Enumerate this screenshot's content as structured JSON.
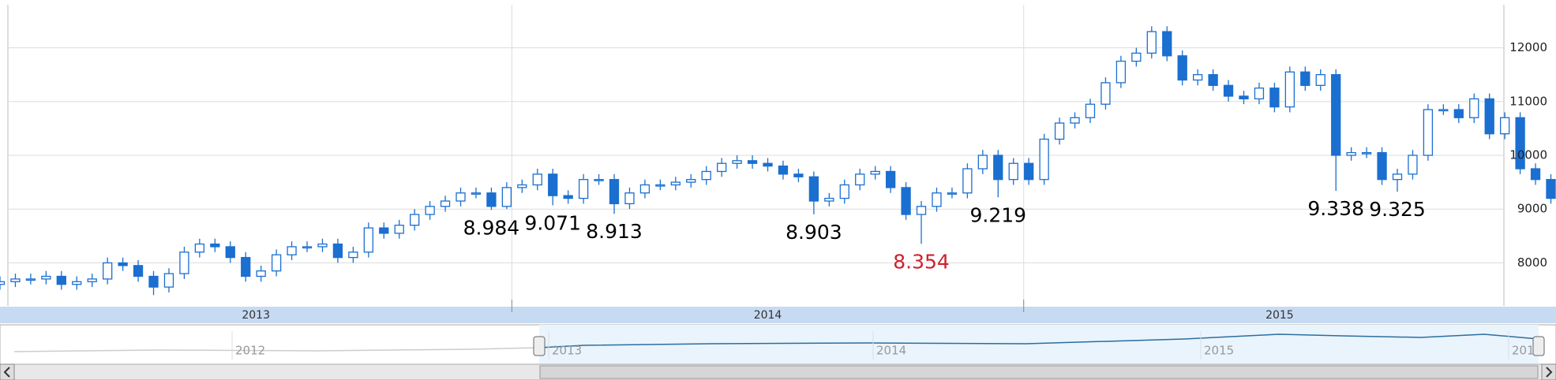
{
  "chart_data": {
    "type": "candlestick",
    "x": [
      2013,
      2013.03,
      2013.06,
      2013.09,
      2013.12,
      2013.15,
      2013.18,
      2013.21,
      2013.24,
      2013.27,
      2013.3,
      2013.33,
      2013.36,
      2013.39,
      2013.42,
      2013.45,
      2013.48,
      2013.51,
      2013.54,
      2013.57,
      2013.6,
      2013.63,
      2013.66,
      2013.69,
      2013.72,
      2013.75,
      2013.78,
      2013.81,
      2013.84,
      2013.87,
      2013.9,
      2013.93,
      2013.96,
      2013.99,
      2014.02,
      2014.05,
      2014.08,
      2014.11,
      2014.14,
      2014.17,
      2014.2,
      2014.23,
      2014.26,
      2014.29,
      2014.32,
      2014.35,
      2014.38,
      2014.41,
      2014.44,
      2014.47,
      2014.5,
      2014.53,
      2014.56,
      2014.59,
      2014.62,
      2014.65,
      2014.68,
      2014.71,
      2014.74,
      2014.77,
      2014.8,
      2014.83,
      2014.86,
      2014.89,
      2014.92,
      2014.95,
      2014.98,
      2015.01,
      2015.04,
      2015.07,
      2015.1,
      2015.13,
      2015.16,
      2015.19,
      2015.22,
      2015.25,
      2015.28,
      2015.31,
      2015.34,
      2015.37,
      2015.4,
      2015.43,
      2015.46,
      2015.49,
      2015.52,
      2015.55,
      2015.58,
      2015.61,
      2015.64,
      2015.67,
      2015.7,
      2015.73,
      2015.76,
      2015.79,
      2015.82,
      2015.85,
      2015.88,
      2015.91,
      2015.94,
      2015.97,
      2016,
      2016.03
    ],
    "open": [
      7600,
      7650,
      7700,
      7700,
      7750,
      7600,
      7650,
      7700,
      8000,
      7950,
      7750,
      7550,
      7800,
      8200,
      8350,
      8300,
      8100,
      7750,
      7850,
      8150,
      8300,
      8300,
      8350,
      8100,
      8200,
      8650,
      8550,
      8700,
      8900,
      9050,
      9150,
      9300,
      9300,
      9050,
      9400,
      9450,
      9650,
      9250,
      9200,
      9550,
      9550,
      9100,
      9300,
      9450,
      9450,
      9500,
      9550,
      9700,
      9850,
      9900,
      9850,
      9800,
      9650,
      9600,
      9150,
      9200,
      9450,
      9650,
      9700,
      9400,
      8900,
      9050,
      9300,
      9300,
      9750,
      10000,
      9550,
      9850,
      9550,
      10300,
      10600,
      10700,
      10950,
      11350,
      11750,
      11900,
      12300,
      11850,
      11400,
      11500,
      11300,
      11100,
      11050,
      11250,
      10900,
      11550,
      11300,
      11500,
      10000,
      10050,
      10050,
      9550,
      9650,
      10000,
      10850,
      10850,
      10700,
      11050,
      10400,
      10700,
      9750,
      9550
    ],
    "high": [
      7750,
      7800,
      7800,
      7850,
      7850,
      7750,
      7800,
      8100,
      8100,
      8050,
      7850,
      7900,
      8300,
      8450,
      8450,
      8400,
      8200,
      7950,
      8250,
      8400,
      8400,
      8450,
      8450,
      8300,
      8750,
      8750,
      8800,
      9000,
      9150,
      9250,
      9400,
      9400,
      9400,
      9500,
      9550,
      9750,
      9750,
      9350,
      9650,
      9650,
      9650,
      9400,
      9550,
      9550,
      9600,
      9650,
      9800,
      9950,
      10000,
      10000,
      9950,
      9900,
      9750,
      9700,
      9300,
      9550,
      9750,
      9800,
      9800,
      9500,
      9150,
      9400,
      9400,
      9850,
      10100,
      10100,
      9950,
      9950,
      10400,
      10700,
      10800,
      11050,
      11450,
      11850,
      12000,
      12400,
      12400,
      11950,
      11600,
      11600,
      11400,
      11200,
      11350,
      11350,
      11650,
      11650,
      11600,
      11600,
      10150,
      10150,
      10150,
      9750,
      10100,
      10950,
      10950,
      10950,
      11150,
      11150,
      10800,
      10800,
      9850,
      9650
    ],
    "low": [
      7500,
      7550,
      7600,
      7600,
      7500,
      7500,
      7550,
      7600,
      7850,
      7650,
      7400,
      7450,
      7700,
      8100,
      8200,
      8000,
      7650,
      7650,
      7750,
      8050,
      8200,
      8200,
      8000,
      8000,
      8100,
      8450,
      8450,
      8600,
      8800,
      8950,
      9050,
      9200,
      8984,
      9000,
      9300,
      9350,
      9071,
      9100,
      9100,
      9450,
      8913,
      9000,
      9200,
      9350,
      9350,
      9400,
      9450,
      9600,
      9750,
      9750,
      9700,
      9550,
      9500,
      8903,
      9050,
      9100,
      9350,
      9550,
      9300,
      8800,
      8354,
      8950,
      9200,
      9200,
      9650,
      9219,
      9450,
      9450,
      9450,
      10200,
      10500,
      10600,
      10850,
      11250,
      11650,
      11800,
      11750,
      11300,
      11300,
      11200,
      11000,
      10950,
      10950,
      10800,
      10800,
      11200,
      11200,
      9338,
      9900,
      9950,
      9450,
      9325,
      9550,
      9900,
      10750,
      10600,
      10600,
      10300,
      10300,
      9650,
      9450,
      9100
    ],
    "close": [
      7650,
      7700,
      7700,
      7750,
      7600,
      7650,
      7700,
      8000,
      7950,
      7750,
      7550,
      7800,
      8200,
      8350,
      8300,
      8100,
      7750,
      7850,
      8150,
      8300,
      8300,
      8350,
      8100,
      8200,
      8650,
      8550,
      8700,
      8900,
      9050,
      9150,
      9300,
      9300,
      9050,
      9400,
      9450,
      9650,
      9250,
      9200,
      9550,
      9550,
      9100,
      9300,
      9450,
      9450,
      9500,
      9550,
      9700,
      9850,
      9900,
      9850,
      9800,
      9650,
      9600,
      9150,
      9200,
      9450,
      9650,
      9700,
      9400,
      8900,
      9050,
      9300,
      9300,
      9750,
      10000,
      9550,
      9850,
      9550,
      10300,
      10600,
      10700,
      10950,
      11350,
      11750,
      11900,
      12300,
      11850,
      11400,
      11500,
      11300,
      11100,
      11050,
      11250,
      10900,
      11550,
      11300,
      11500,
      10000,
      10050,
      10050,
      9550,
      9650,
      10000,
      10850,
      10850,
      10700,
      11050,
      10400,
      10700,
      9750,
      9550,
      9200
    ],
    "up_color": "#ffffff",
    "down_color": "#1a6fd0",
    "line_color": "#1a6fd0",
    "xlim": [
      2013,
      2016.04
    ],
    "xticks": [
      2014,
      2015
    ],
    "year_labels": [
      2013,
      2014,
      2015
    ],
    "ylim": [
      7200,
      12800
    ],
    "yticks": [
      8000,
      9000,
      10000,
      11000,
      12000
    ],
    "grid": true,
    "annotations": [
      {
        "text": "8.984",
        "x": 2013.96,
        "value": 8984,
        "color": "#000000"
      },
      {
        "text": "9.071",
        "x": 2014.08,
        "value": 9071,
        "color": "#000000"
      },
      {
        "text": "8.913",
        "x": 2014.2,
        "value": 8913,
        "color": "#000000"
      },
      {
        "text": "8.903",
        "x": 2014.59,
        "value": 8903,
        "color": "#000000"
      },
      {
        "text": "8.354",
        "x": 2014.8,
        "value": 8354,
        "color": "#d0202e"
      },
      {
        "text": "9.219",
        "x": 2014.95,
        "value": 9219,
        "color": "#000000"
      },
      {
        "text": "9.338",
        "x": 2015.61,
        "value": 9338,
        "color": "#000000"
      },
      {
        "text": "9.325",
        "x": 2015.73,
        "value": 9325,
        "color": "#000000"
      }
    ],
    "navigator_labels": [
      "2012",
      "2013",
      "2014",
      "2015",
      "201"
    ]
  }
}
